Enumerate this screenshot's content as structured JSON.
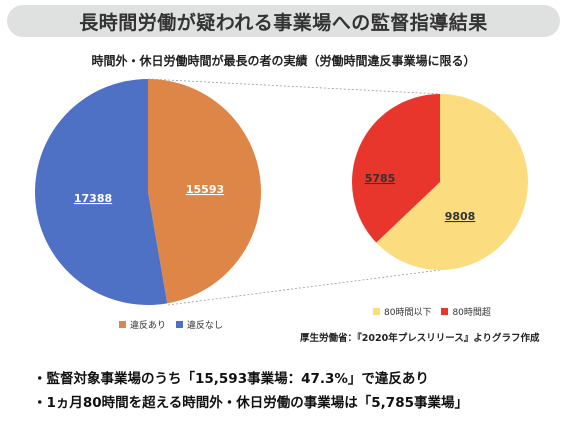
{
  "title": "長時間労働が疑われる事業場への監督指導結果",
  "subtitle": "時間外・休日労働時間が最長の者の実績（労働時間違反事業場に限る）",
  "chart_data": [
    {
      "type": "pie",
      "slices": [
        {
          "name": "違反あり",
          "value": 15593,
          "color": "#de8647"
        },
        {
          "name": "違反なし",
          "value": 17388,
          "color": "#4e71c6"
        }
      ],
      "legend": "bottom"
    },
    {
      "type": "pie",
      "slices": [
        {
          "name": "80時間以下",
          "value": 9808,
          "color": "#fbdd80"
        },
        {
          "name": "80時間超",
          "value": 5785,
          "color": "#e8362c"
        }
      ],
      "legend": "bottom"
    }
  ],
  "labels": {
    "left_orange": "15593",
    "left_blue": "17388",
    "right_red": "5785",
    "right_yellow": "9808"
  },
  "legend": {
    "left": [
      "違反あり",
      "違反なし"
    ],
    "right": [
      "80時間以下",
      "80時間超"
    ]
  },
  "source": "厚生労働省：『2020年プレスリリース』よりグラフ作成",
  "bullets": [
    "・監督対象事業場のうち「15,593事業場：47.3%」で違反あり",
    "・1ヵ月80時間を超える時間外・休日労働の事業場は「5,785事業場」"
  ]
}
